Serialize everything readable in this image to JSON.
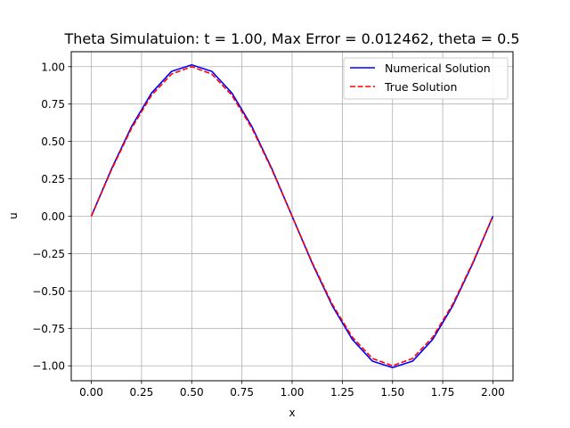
{
  "chart_data": {
    "type": "line",
    "title": "Theta Simulatuion: t = 1.00, Max Error = 0.012462, theta = 0.5",
    "xlabel": "x",
    "ylabel": "u",
    "xlim": [
      -0.1,
      2.1
    ],
    "ylim": [
      -1.1,
      1.1
    ],
    "x_ticks": [
      0.0,
      0.25,
      0.5,
      0.75,
      1.0,
      1.25,
      1.5,
      1.75,
      2.0
    ],
    "x_tick_labels": [
      "0.00",
      "0.25",
      "0.50",
      "0.75",
      "1.00",
      "1.25",
      "1.50",
      "1.75",
      "2.00"
    ],
    "y_ticks": [
      -1.0,
      -0.75,
      -0.5,
      -0.25,
      0.0,
      0.25,
      0.5,
      0.75,
      1.0
    ],
    "y_tick_labels": [
      "−1.00",
      "−0.75",
      "−0.50",
      "−0.25",
      "0.00",
      "0.25",
      "0.50",
      "0.75",
      "1.00"
    ],
    "grid": true,
    "legend_position": "top-right",
    "x": [
      0.0,
      0.1,
      0.2,
      0.3,
      0.4,
      0.5,
      0.6,
      0.7,
      0.8,
      0.9,
      1.0,
      1.1,
      1.2,
      1.3,
      1.4,
      1.5,
      1.6,
      1.7,
      1.8,
      1.9,
      2.0
    ],
    "series": [
      {
        "name": "Numerical Solution",
        "color": "#0000ff",
        "dash": "solid",
        "values": [
          0.0,
          0.315,
          0.599,
          0.824,
          0.969,
          1.012,
          0.969,
          0.824,
          0.599,
          0.315,
          0.0,
          -0.315,
          -0.599,
          -0.824,
          -0.969,
          -1.012,
          -0.969,
          -0.824,
          -0.599,
          -0.315,
          0.0
        ]
      },
      {
        "name": "True Solution",
        "color": "#ff0000",
        "dash": "dashed",
        "values": [
          0.0,
          0.309,
          0.588,
          0.809,
          0.951,
          1.0,
          0.951,
          0.809,
          0.588,
          0.309,
          0.0,
          -0.309,
          -0.588,
          -0.809,
          -0.951,
          -1.0,
          -0.951,
          -0.809,
          -0.588,
          -0.309,
          0.0
        ]
      }
    ]
  }
}
